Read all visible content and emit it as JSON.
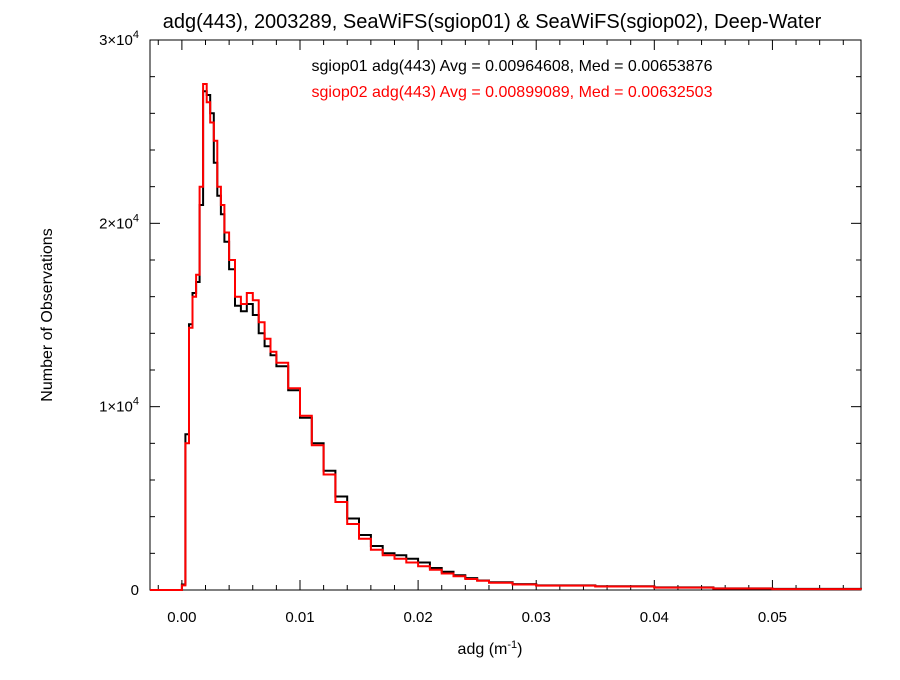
{
  "chart_data": {
    "type": "line",
    "title": "adg(443), 2003289, SeaWiFS(sgiop01) & SeaWiFS(sgiop02), Deep-Water",
    "xlabel": "adg (m",
    "xlabel_sup": "-1",
    "xlabel_close": ")",
    "ylabel": "Number of Observations",
    "xlim": [
      -0.0027,
      0.0575
    ],
    "ylim": [
      0,
      30000
    ],
    "x_ticks": [
      0.0,
      0.01,
      0.02,
      0.03,
      0.04,
      0.05
    ],
    "x_tick_labels": [
      "0.00",
      "0.01",
      "0.02",
      "0.03",
      "0.04",
      "0.05"
    ],
    "y_ticks": [
      {
        "value": 0,
        "mant": "0",
        "exp": ""
      },
      {
        "value": 10000,
        "mant": "1×10",
        "exp": "4"
      },
      {
        "value": 20000,
        "mant": "2×10",
        "exp": "4"
      },
      {
        "value": 30000,
        "mant": "3×10",
        "exp": "4"
      }
    ],
    "grid": false,
    "legend_position": "top-right",
    "series": [
      {
        "name": "sgiop01 adg(443) Avg = 0.00964608, Med = 0.00653876",
        "color": "#000000",
        "x": [
          -0.0027,
          0.0,
          0.0003,
          0.0006,
          0.0009,
          0.0012,
          0.0015,
          0.0018,
          0.0021,
          0.0024,
          0.0027,
          0.003,
          0.0033,
          0.0036,
          0.004,
          0.0045,
          0.005,
          0.0055,
          0.006,
          0.0065,
          0.007,
          0.0075,
          0.008,
          0.009,
          0.01,
          0.011,
          0.012,
          0.013,
          0.014,
          0.015,
          0.016,
          0.017,
          0.018,
          0.019,
          0.02,
          0.021,
          0.022,
          0.023,
          0.024,
          0.025,
          0.026,
          0.028,
          0.03,
          0.035,
          0.04,
          0.045,
          0.05,
          0.0575
        ],
        "values": [
          0,
          300,
          8500,
          14500,
          16200,
          16800,
          21000,
          27200,
          27000,
          26000,
          23300,
          21500,
          20500,
          19000,
          17500,
          15500,
          15200,
          15600,
          15000,
          14000,
          13300,
          12800,
          12200,
          10900,
          9400,
          8000,
          6500,
          5100,
          3900,
          3000,
          2400,
          2000,
          1900,
          1700,
          1500,
          1200,
          1000,
          800,
          650,
          520,
          420,
          320,
          250,
          200,
          140,
          90,
          60,
          40
        ]
      },
      {
        "name": "sgiop02 adg(443) Avg = 0.00899089, Med = 0.00632503",
        "color": "#ff0000",
        "x": [
          -0.0027,
          0.0,
          0.0003,
          0.0006,
          0.0009,
          0.0012,
          0.0015,
          0.0018,
          0.0021,
          0.0024,
          0.0027,
          0.003,
          0.0033,
          0.0036,
          0.004,
          0.0045,
          0.005,
          0.0055,
          0.006,
          0.0065,
          0.007,
          0.0075,
          0.008,
          0.009,
          0.01,
          0.011,
          0.012,
          0.013,
          0.014,
          0.015,
          0.016,
          0.017,
          0.018,
          0.019,
          0.02,
          0.021,
          0.022,
          0.023,
          0.024,
          0.025,
          0.026,
          0.028,
          0.03,
          0.035,
          0.04,
          0.045,
          0.05,
          0.0575
        ],
        "values": [
          0,
          250,
          8000,
          14300,
          16000,
          17200,
          22000,
          27600,
          26600,
          25500,
          24500,
          22000,
          21000,
          19500,
          18000,
          16000,
          15600,
          16200,
          15800,
          14600,
          13700,
          13000,
          12400,
          11000,
          9500,
          7900,
          6300,
          4800,
          3600,
          2800,
          2200,
          1900,
          1700,
          1500,
          1300,
          1100,
          900,
          750,
          600,
          500,
          400,
          300,
          240,
          190,
          130,
          80,
          50,
          30
        ]
      }
    ]
  }
}
